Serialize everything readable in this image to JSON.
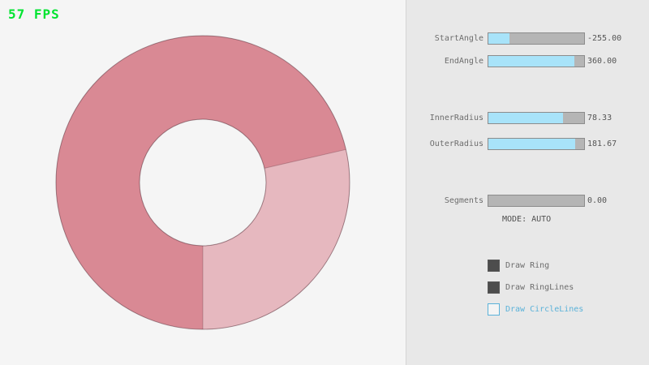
{
  "fps": "57 FPS",
  "colors": {
    "fps_green": "#00e430",
    "canvas_bg": "#f5f5f5",
    "panel_bg": "#e8e8e8",
    "divider": "#d4d4d4",
    "ring_dark": "#d98994",
    "ring_light": "#e6b8bf",
    "ring_outline": "rgba(60,20,30,0.45)",
    "ring_boundary": "rgba(60,20,30,0.25)",
    "slider_fill": "#a8e3f9",
    "slider_track": "#b5b5b5",
    "slider_border": "#8c8c8c",
    "label_gray": "#6d6d6d",
    "value_gray": "#555555",
    "checkbox_dark": "#4d4d4d",
    "accent_blue": "#5bb2d9",
    "mode_gray": "#4f4f4f"
  },
  "panel": {
    "sliders": [
      {
        "label": "StartAngle",
        "value": "-255.00",
        "fill_pct": 21.7
      },
      {
        "label": "EndAngle",
        "value": "360.00",
        "fill_pct": 90
      },
      {
        "label": "InnerRadius",
        "value": "78.33",
        "fill_pct": 78.3
      },
      {
        "label": "OuterRadius",
        "value": "181.67",
        "fill_pct": 90.8
      },
      {
        "label": "Segments",
        "value": "0.00",
        "fill_pct": 0
      }
    ],
    "mode_text": "MODE: AUTO",
    "checkboxes": [
      {
        "label": "Draw Ring",
        "checked": true
      },
      {
        "label": "Draw RingLines",
        "checked": true
      },
      {
        "label": "Draw CircleLines",
        "checked": false
      }
    ]
  }
}
